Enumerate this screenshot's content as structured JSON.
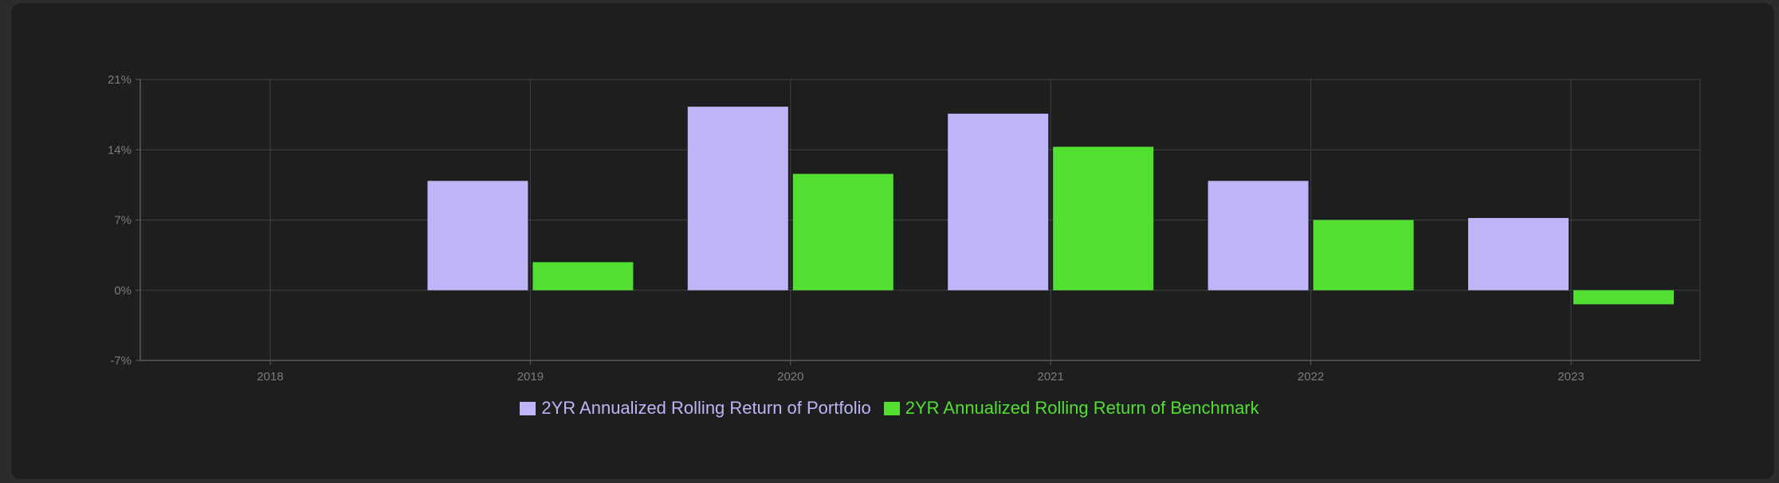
{
  "chart_data": {
    "type": "bar",
    "categories": [
      "2018",
      "2019",
      "2020",
      "2021",
      "2022",
      "2023"
    ],
    "series": [
      {
        "name": "2YR Annualized Rolling Return of Portfolio",
        "color": "#bdb5f7",
        "values": [
          null,
          10.9,
          18.3,
          17.6,
          10.9,
          7.2
        ]
      },
      {
        "name": "2YR Annualized Rolling Return of Benchmark",
        "color": "#53df31",
        "values": [
          null,
          2.8,
          11.6,
          14.3,
          7.0,
          -1.4
        ]
      }
    ],
    "yticks": [
      -7,
      0,
      7,
      14,
      21
    ],
    "ytick_labels": [
      "-7%",
      "0%",
      "7%",
      "14%",
      "21%"
    ],
    "ylim": [
      -7,
      21
    ],
    "grid": true,
    "legend_position": "bottom",
    "colors": {
      "background": "#1d1f1e",
      "grid": "#3e403f",
      "axis": "#5a5c5b",
      "tick_text": "#7b7d7c"
    }
  }
}
